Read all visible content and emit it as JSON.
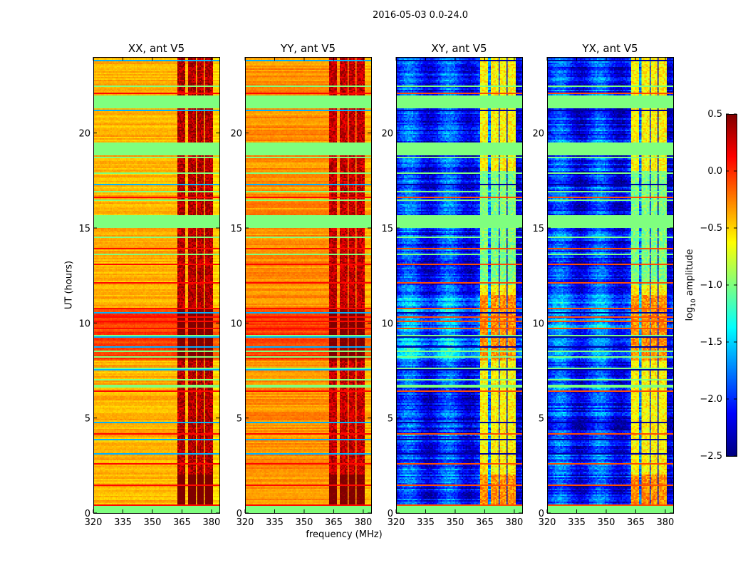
{
  "chart_data": {
    "type": "heatmap",
    "title": "2016-05-03 0.0-24.0",
    "xlabel": "frequency (MHz)",
    "ylabel": "UT (hours)",
    "xlim": [
      320,
      384
    ],
    "ylim": [
      0,
      24
    ],
    "xticks": [
      "320",
      "335",
      "350",
      "365",
      "380"
    ],
    "xtick_values": [
      320,
      335,
      350,
      365,
      380
    ],
    "yticks": [
      "0",
      "5",
      "10",
      "15",
      "20"
    ],
    "ytick_values": [
      0,
      5,
      10,
      15,
      20
    ],
    "colorbar": {
      "label_main": "log",
      "label_sub": "10",
      "label_rest": " amplitude",
      "colormap": "jet",
      "range": [
        -2.5,
        0.5
      ],
      "ticks": [
        "0.5",
        "0.0",
        "−0.5",
        "−1.0",
        "−1.5",
        "−2.0",
        "−2.5"
      ],
      "tick_values": [
        0.5,
        0.0,
        -0.5,
        -1.0,
        -1.5,
        -2.0,
        -2.5
      ]
    },
    "flagged_time_ranges_hours": [
      [
        0,
        0.3
      ],
      [
        15.0,
        15.7
      ],
      [
        18.8,
        19.5
      ],
      [
        21.3,
        22.0
      ]
    ],
    "rfi_channel_ranges_mhz": [
      [
        363,
        367
      ],
      [
        368,
        372
      ],
      [
        373,
        376
      ],
      [
        377,
        381
      ]
    ],
    "panels": [
      {
        "title": "XX, ant V5",
        "background_log_amp": -0.4,
        "active_period_hours": [
          8.0,
          10.8
        ],
        "active_log_amp": -0.05,
        "rfi_log_amp": 0.35
      },
      {
        "title": "YY, ant V5",
        "background_log_amp": -0.3,
        "active_period_hours": [
          8.0,
          10.8
        ],
        "active_log_amp": -0.05,
        "rfi_log_amp": 0.3
      },
      {
        "title": "XY, ant V5",
        "background_log_amp": -2.0,
        "active_period_hours": [
          8.0,
          11.5
        ],
        "active_log_amp": -1.7,
        "rfi_log_amp": -0.6
      },
      {
        "title": "YX, ant V5",
        "background_log_amp": -2.0,
        "active_period_hours": [
          8.0,
          11.5
        ],
        "active_log_amp": -1.7,
        "rfi_log_amp": -0.6
      }
    ]
  }
}
